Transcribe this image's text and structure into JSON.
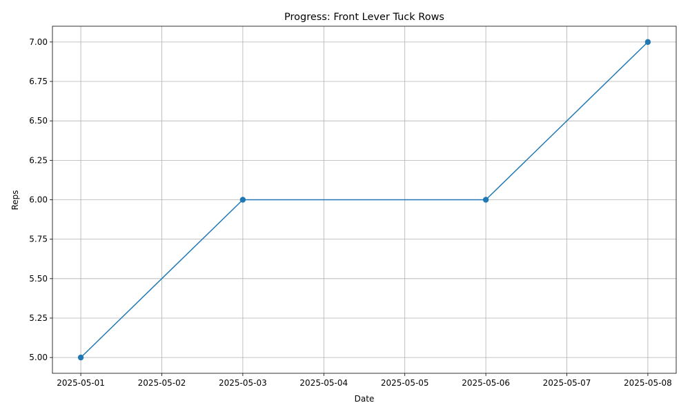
{
  "chart_data": {
    "type": "line",
    "title": "Progress: Front Lever Tuck Rows",
    "xlabel": "Date",
    "ylabel": "Reps",
    "x_ticks": [
      "2025-05-01",
      "2025-05-02",
      "2025-05-03",
      "2025-05-04",
      "2025-05-05",
      "2025-05-06",
      "2025-05-07",
      "2025-05-08"
    ],
    "y_ticks": [
      "5.00",
      "5.25",
      "5.50",
      "5.75",
      "6.00",
      "6.25",
      "6.50",
      "6.75",
      "7.00"
    ],
    "xlim": [
      "2025-04-30",
      "2025-05-08"
    ],
    "ylim": [
      4.9,
      7.1
    ],
    "grid": true,
    "series": [
      {
        "color": "#1f77b4",
        "marker": "circle",
        "x": [
          "2025-05-01",
          "2025-05-03",
          "2025-05-06",
          "2025-05-08"
        ],
        "y": [
          5,
          6,
          6,
          7
        ]
      }
    ]
  }
}
